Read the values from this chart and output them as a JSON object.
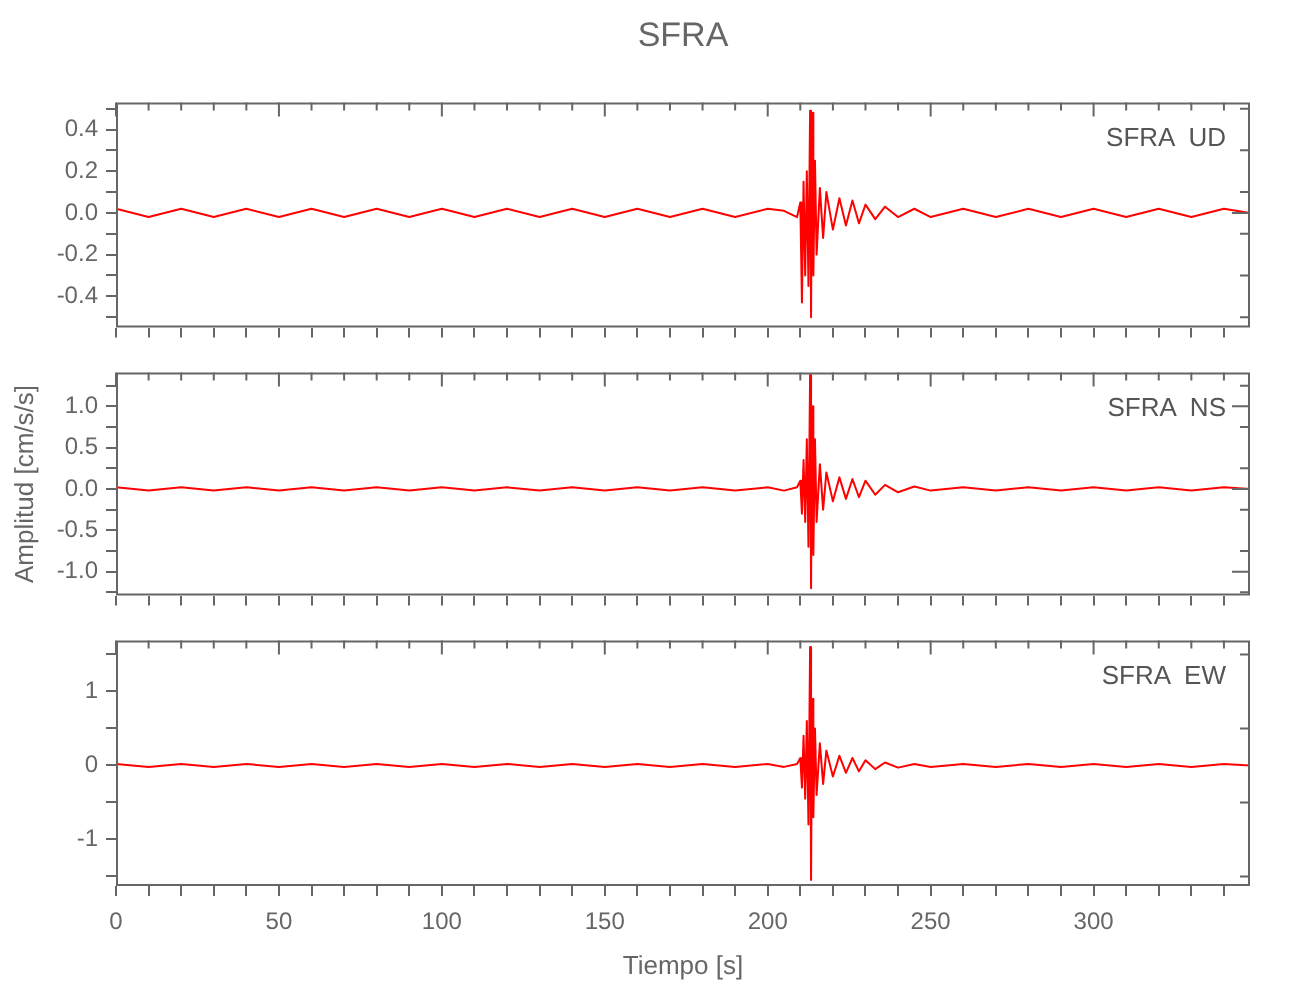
{
  "chart_data": [
    {
      "type": "line",
      "title": "SFRA",
      "annotations": [
        "SFRA  UD"
      ],
      "marker": "none",
      "tick_labels": "y",
      "x": [
        0,
        10,
        20,
        30,
        40,
        50,
        60,
        70,
        80,
        90,
        100,
        110,
        120,
        130,
        140,
        150,
        160,
        170,
        180,
        190,
        200,
        205,
        209,
        210,
        210.5,
        211,
        211.5,
        212,
        212.5,
        213,
        213.3,
        213.6,
        214,
        214.5,
        215,
        216,
        217,
        218,
        220,
        222,
        224,
        226,
        228,
        230,
        233,
        236,
        240,
        245,
        250,
        260,
        270,
        280,
        290,
        300,
        310,
        320,
        330,
        340,
        348
      ],
      "series": [
        {
          "color": "#ff0000",
          "values": [
            0.02,
            -0.02,
            0.02,
            -0.02,
            0.02,
            -0.02,
            0.02,
            -0.02,
            0.02,
            -0.02,
            0.02,
            -0.02,
            0.02,
            -0.02,
            0.02,
            -0.02,
            0.02,
            -0.02,
            0.02,
            -0.02,
            0.02,
            0.01,
            -0.02,
            0.05,
            -0.43,
            0.15,
            -0.3,
            0.2,
            -0.35,
            0.49,
            -0.5,
            0.48,
            -0.3,
            0.25,
            -0.2,
            0.12,
            -0.12,
            0.1,
            -0.08,
            0.07,
            -0.06,
            0.06,
            -0.05,
            0.04,
            -0.03,
            0.03,
            -0.02,
            0.02,
            -0.02,
            0.02,
            -0.02,
            0.02,
            -0.02,
            0.02,
            -0.02,
            0.02,
            -0.02,
            0.02,
            0
          ]
        }
      ],
      "xlim": [
        0,
        348
      ],
      "xticks": [
        0,
        {
          "value": 10,
          "label": null
        },
        {
          "value": 20,
          "label": null
        },
        {
          "value": 30,
          "label": null
        },
        {
          "value": 40,
          "label": null
        },
        50,
        {
          "value": 60,
          "label": null
        },
        {
          "value": 70,
          "label": null
        },
        {
          "value": 80,
          "label": null
        },
        {
          "value": 90,
          "label": null
        },
        100,
        {
          "value": 110,
          "label": null
        },
        {
          "value": 120,
          "label": null
        },
        {
          "value": 130,
          "label": null
        },
        {
          "value": 140,
          "label": null
        },
        150,
        {
          "value": 160,
          "label": null
        },
        {
          "value": 170,
          "label": null
        },
        {
          "value": 180,
          "label": null
        },
        {
          "value": 190,
          "label": null
        },
        200,
        {
          "value": 210,
          "label": null
        },
        {
          "value": 220,
          "label": null
        },
        {
          "value": 230,
          "label": null
        },
        {
          "value": 240,
          "label": null
        },
        250,
        {
          "value": 260,
          "label": null
        },
        {
          "value": 270,
          "label": null
        },
        {
          "value": 280,
          "label": null
        },
        {
          "value": 290,
          "label": null
        },
        300,
        {
          "value": 310,
          "label": null
        },
        {
          "value": 320,
          "label": null
        },
        {
          "value": 330,
          "label": null
        },
        {
          "value": 340,
          "label": null
        }
      ],
      "ylim": [
        -0.55,
        0.53
      ],
      "yticks": [
        {
          "value": -0.5,
          "label": null
        },
        -0.4,
        {
          "value": -0.3,
          "label": null
        },
        -0.2,
        {
          "value": -0.1,
          "label": null
        },
        {
          "value": 0,
          "label": "0.0"
        },
        {
          "value": 0.1,
          "label": null
        },
        0.2,
        {
          "value": 0.3,
          "label": null
        },
        0.4,
        {
          "value": 0.5,
          "label": null
        }
      ]
    },
    {
      "type": "line",
      "ylabel": "Amplitud [cm/s/s]",
      "annotations": [
        "SFRA  NS"
      ],
      "marker": "none",
      "tick_labels": "y",
      "x": [
        0,
        10,
        20,
        30,
        40,
        50,
        60,
        70,
        80,
        90,
        100,
        110,
        120,
        130,
        140,
        150,
        160,
        170,
        180,
        190,
        200,
        205,
        209,
        210,
        210.5,
        211,
        211.5,
        212,
        212.5,
        213,
        213.3,
        213.6,
        214,
        214.5,
        215,
        216,
        217,
        218,
        220,
        222,
        224,
        226,
        228,
        230,
        233,
        236,
        240,
        245,
        250,
        260,
        270,
        280,
        290,
        300,
        310,
        320,
        330,
        340,
        348
      ],
      "series": [
        {
          "color": "#ff0000",
          "values": [
            0.02,
            -0.02,
            0.02,
            -0.02,
            0.02,
            -0.02,
            0.02,
            -0.02,
            0.02,
            -0.02,
            0.02,
            -0.02,
            0.02,
            -0.02,
            0.02,
            -0.02,
            0.02,
            -0.02,
            0.02,
            -0.02,
            0.02,
            -0.02,
            0.02,
            0.1,
            -0.3,
            0.35,
            -0.4,
            0.6,
            -0.7,
            1.38,
            -1.2,
            1.0,
            -0.8,
            0.6,
            -0.4,
            0.3,
            -0.25,
            0.2,
            -0.15,
            0.14,
            -0.12,
            0.12,
            -0.1,
            0.1,
            -0.07,
            0.05,
            -0.04,
            0.03,
            -0.02,
            0.02,
            -0.02,
            0.02,
            -0.02,
            0.02,
            -0.02,
            0.02,
            -0.02,
            0.02,
            0
          ]
        }
      ],
      "xlim": [
        0,
        348
      ],
      "xticks": [
        0,
        {
          "value": 10,
          "label": null
        },
        {
          "value": 20,
          "label": null
        },
        {
          "value": 30,
          "label": null
        },
        {
          "value": 40,
          "label": null
        },
        50,
        {
          "value": 60,
          "label": null
        },
        {
          "value": 70,
          "label": null
        },
        {
          "value": 80,
          "label": null
        },
        {
          "value": 90,
          "label": null
        },
        100,
        {
          "value": 110,
          "label": null
        },
        {
          "value": 120,
          "label": null
        },
        {
          "value": 130,
          "label": null
        },
        {
          "value": 140,
          "label": null
        },
        150,
        {
          "value": 160,
          "label": null
        },
        {
          "value": 170,
          "label": null
        },
        {
          "value": 180,
          "label": null
        },
        {
          "value": 190,
          "label": null
        },
        200,
        {
          "value": 210,
          "label": null
        },
        {
          "value": 220,
          "label": null
        },
        {
          "value": 230,
          "label": null
        },
        {
          "value": 240,
          "label": null
        },
        250,
        {
          "value": 260,
          "label": null
        },
        {
          "value": 270,
          "label": null
        },
        {
          "value": 280,
          "label": null
        },
        {
          "value": 290,
          "label": null
        },
        300,
        {
          "value": 310,
          "label": null
        },
        {
          "value": 320,
          "label": null
        },
        {
          "value": 330,
          "label": null
        },
        {
          "value": 340,
          "label": null
        }
      ],
      "ylim": [
        -1.29,
        1.41
      ],
      "yticks": [
        {
          "value": -1.25,
          "label": null
        },
        {
          "value": -1,
          "label": "-1.0"
        },
        {
          "value": -0.75,
          "label": null
        },
        -0.5,
        {
          "value": -0.25,
          "label": null
        },
        {
          "value": 0,
          "label": "0.0"
        },
        {
          "value": 0.25,
          "label": null
        },
        0.5,
        {
          "value": 0.75,
          "label": null
        },
        {
          "value": 1,
          "label": "1.0"
        },
        {
          "value": 1.25,
          "label": null
        }
      ]
    },
    {
      "type": "line",
      "xlabel": "Tiempo [s]",
      "annotations": [
        "SFRA  EW"
      ],
      "marker": "none",
      "x": [
        0,
        10,
        20,
        30,
        40,
        50,
        60,
        70,
        80,
        90,
        100,
        110,
        120,
        130,
        140,
        150,
        160,
        170,
        180,
        190,
        200,
        205,
        209,
        210,
        210.5,
        211,
        211.5,
        212,
        212.5,
        213,
        213.3,
        213.6,
        214,
        214.5,
        215,
        216,
        217,
        218,
        220,
        222,
        224,
        226,
        228,
        230,
        233,
        236,
        240,
        245,
        250,
        260,
        270,
        280,
        290,
        300,
        310,
        320,
        330,
        340,
        348
      ],
      "series": [
        {
          "color": "#ff0000",
          "values": [
            0.02,
            -0.02,
            0.02,
            -0.02,
            0.02,
            -0.02,
            0.02,
            -0.02,
            0.02,
            -0.02,
            0.02,
            -0.02,
            0.02,
            -0.02,
            0.02,
            -0.02,
            0.02,
            -0.02,
            0.02,
            -0.02,
            0.02,
            -0.02,
            0.02,
            0.1,
            -0.3,
            0.4,
            -0.45,
            0.6,
            -0.8,
            1.6,
            -1.55,
            0.9,
            -0.7,
            0.5,
            -0.4,
            0.3,
            -0.25,
            0.2,
            -0.15,
            0.13,
            -0.1,
            0.1,
            -0.08,
            0.07,
            -0.05,
            0.04,
            -0.03,
            0.02,
            -0.02,
            0.02,
            -0.02,
            0.02,
            -0.02,
            0.02,
            -0.02,
            0.02,
            -0.02,
            0.02,
            0
          ]
        }
      ],
      "xlim": [
        0,
        348
      ],
      "xticks": [
        0,
        {
          "value": 10,
          "label": null
        },
        {
          "value": 20,
          "label": null
        },
        {
          "value": 30,
          "label": null
        },
        {
          "value": 40,
          "label": null
        },
        50,
        {
          "value": 60,
          "label": null
        },
        {
          "value": 70,
          "label": null
        },
        {
          "value": 80,
          "label": null
        },
        {
          "value": 90,
          "label": null
        },
        100,
        {
          "value": 110,
          "label": null
        },
        {
          "value": 120,
          "label": null
        },
        {
          "value": 130,
          "label": null
        },
        {
          "value": 140,
          "label": null
        },
        150,
        {
          "value": 160,
          "label": null
        },
        {
          "value": 170,
          "label": null
        },
        {
          "value": 180,
          "label": null
        },
        {
          "value": 190,
          "label": null
        },
        200,
        {
          "value": 210,
          "label": null
        },
        {
          "value": 220,
          "label": null
        },
        {
          "value": 230,
          "label": null
        },
        {
          "value": 240,
          "label": null
        },
        250,
        {
          "value": 260,
          "label": null
        },
        {
          "value": 270,
          "label": null
        },
        {
          "value": 280,
          "label": null
        },
        {
          "value": 290,
          "label": null
        },
        300,
        {
          "value": 310,
          "label": null
        },
        {
          "value": 320,
          "label": null
        },
        {
          "value": 330,
          "label": null
        },
        {
          "value": 340,
          "label": null
        }
      ],
      "ylim": [
        -1.63,
        1.69
      ],
      "yticks": [
        {
          "value": -1.5,
          "label": null
        },
        -1,
        {
          "value": -0.5,
          "label": null
        },
        0,
        {
          "value": 0.5,
          "label": null
        },
        1,
        {
          "value": 1.5,
          "label": null
        }
      ]
    }
  ]
}
